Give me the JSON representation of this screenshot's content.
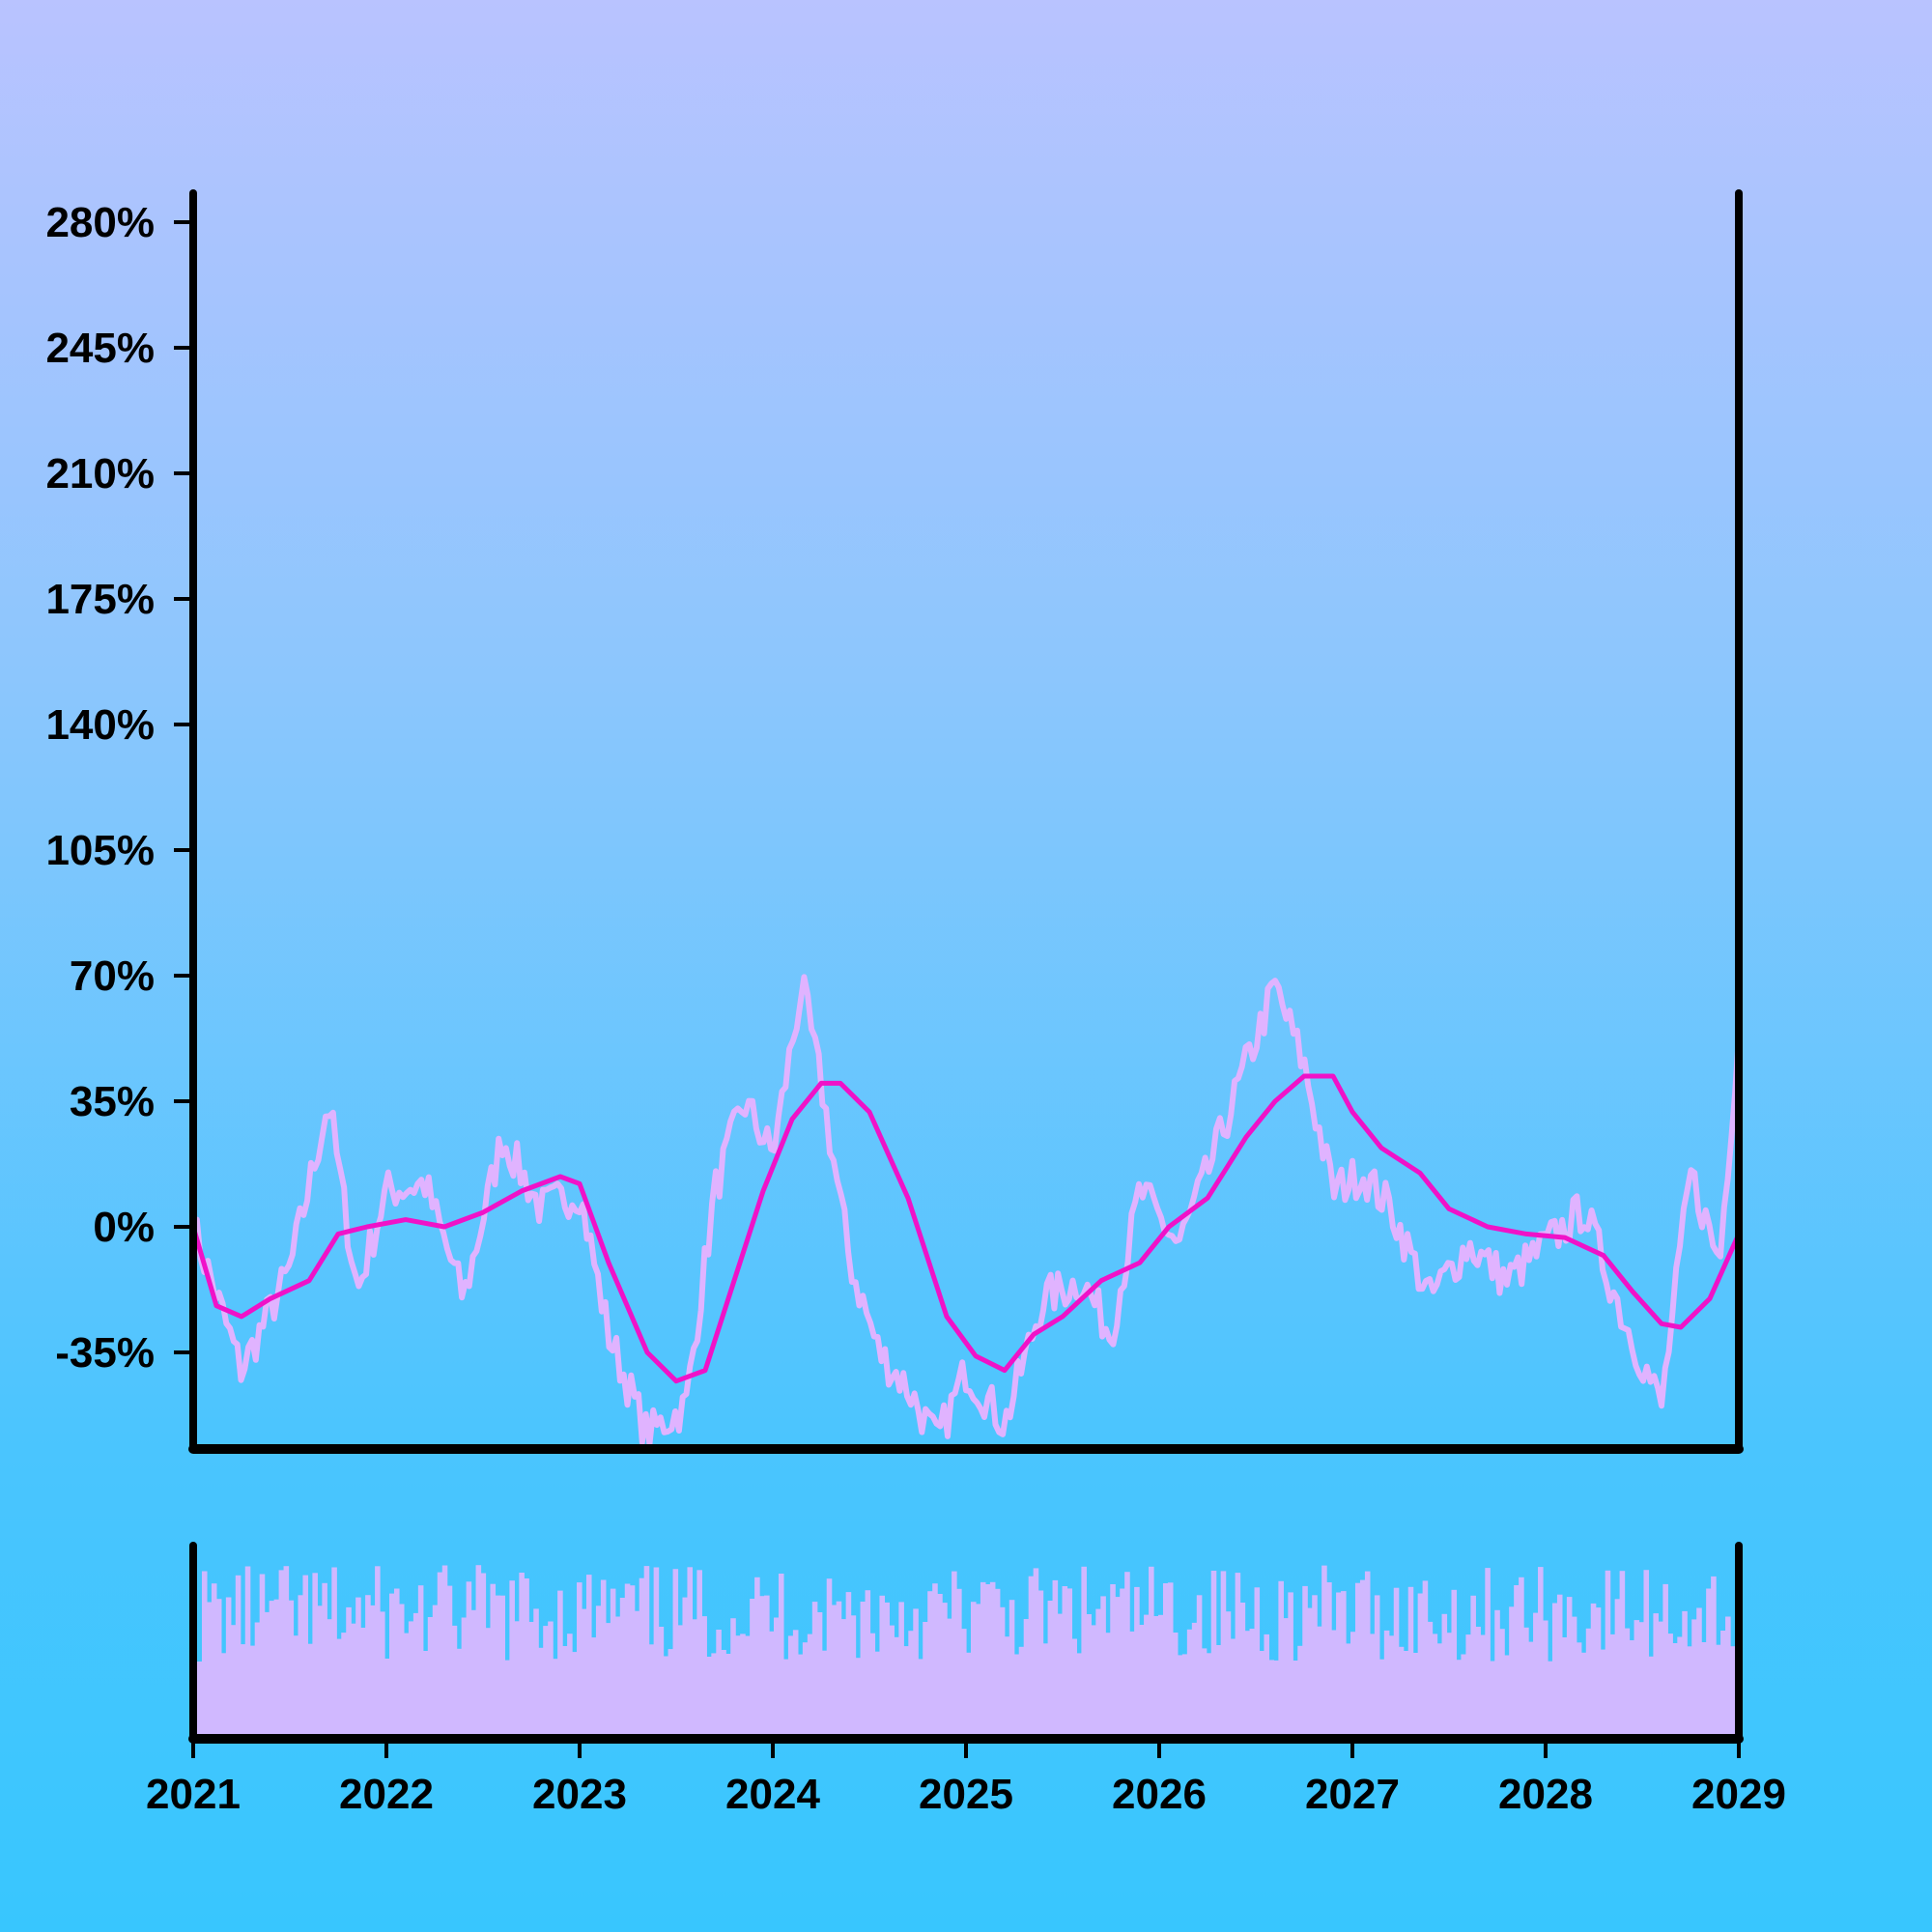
{
  "chart_data": [
    {
      "type": "line",
      "y_ticks": [
        "280%",
        "245%",
        "210%",
        "175%",
        "140%",
        "105%",
        "70%",
        "35%",
        "0%",
        "-35%"
      ],
      "y_tick_values": [
        280,
        245,
        210,
        175,
        140,
        105,
        70,
        35,
        0,
        -35
      ],
      "ylim": [
        -62,
        288
      ],
      "xlim": [
        2021,
        2029
      ],
      "grid": false,
      "series": [
        {
          "role": "raw",
          "color": "#e0b3ff",
          "x": [
            2021.0,
            2021.25,
            2021.5,
            2021.7,
            2021.85,
            2022.0,
            2022.2,
            2022.4,
            2022.6,
            2022.8,
            2023.0,
            2023.15,
            2023.35,
            2023.55,
            2023.7,
            2023.85,
            2024.0,
            2024.15,
            2024.25,
            2024.4,
            2024.55,
            2024.7,
            2024.85,
            2025.0,
            2025.2,
            2025.4,
            2025.6,
            2025.75,
            2025.9,
            2026.1,
            2026.25,
            2026.45,
            2026.6,
            2026.75,
            2026.9,
            2027.05,
            2027.2,
            2027.4,
            2027.6,
            2027.8,
            2028.0,
            2028.2,
            2028.4,
            2028.6,
            2028.75,
            2028.9,
            2029.0
          ],
          "values": [
            0,
            -40,
            -12,
            35,
            -18,
            10,
            12,
            -20,
            25,
            5,
            10,
            -30,
            -58,
            -50,
            10,
            35,
            20,
            67,
            40,
            -10,
            -35,
            -45,
            -60,
            -40,
            -55,
            -20,
            -15,
            -30,
            10,
            -5,
            15,
            45,
            67,
            45,
            10,
            15,
            5,
            -20,
            -5,
            -15,
            -5,
            5,
            -25,
            -50,
            15,
            -10,
            55
          ]
        },
        {
          "role": "smoothed",
          "color": "#f012c8",
          "x": [
            2021.0,
            2021.12,
            2021.25,
            2021.4,
            2021.6,
            2021.75,
            2021.9,
            2022.1,
            2022.3,
            2022.5,
            2022.7,
            2022.9,
            2023.0,
            2023.15,
            2023.35,
            2023.5,
            2023.65,
            2023.8,
            2023.95,
            2024.1,
            2024.25,
            2024.35,
            2024.5,
            2024.7,
            2024.9,
            2025.05,
            2025.2,
            2025.35,
            2025.5,
            2025.7,
            2025.9,
            2026.05,
            2026.25,
            2026.45,
            2026.6,
            2026.75,
            2026.9,
            2027.0,
            2027.15,
            2027.35,
            2027.5,
            2027.7,
            2027.9,
            2028.1,
            2028.3,
            2028.45,
            2028.6,
            2028.7,
            2028.85,
            2029.0
          ],
          "values": [
            0,
            -22,
            -25,
            -20,
            -15,
            -2,
            0,
            2,
            0,
            4,
            10,
            14,
            12,
            -10,
            -35,
            -43,
            -40,
            -15,
            10,
            30,
            40,
            40,
            32,
            8,
            -25,
            -36,
            -40,
            -30,
            -25,
            -15,
            -10,
            0,
            8,
            25,
            35,
            42,
            42,
            32,
            22,
            15,
            5,
            0,
            -2,
            -3,
            -8,
            -18,
            -27,
            -28,
            -20,
            -2
          ]
        }
      ]
    },
    {
      "type": "bar",
      "color": "#d0b8ff",
      "x_ticks": [
        "2021",
        "2022",
        "2023",
        "2024",
        "2025",
        "2026",
        "2027",
        "2028",
        "2029"
      ]
    }
  ]
}
